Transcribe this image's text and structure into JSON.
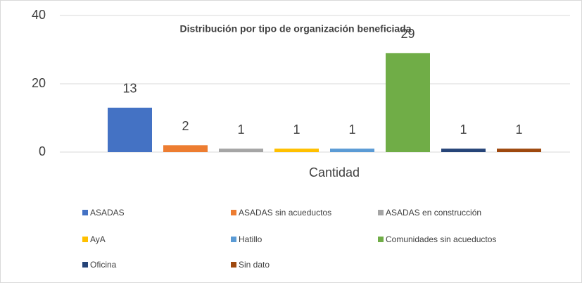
{
  "chart_data": {
    "type": "bar",
    "title": "Distribución por tipo de organización beneficiada",
    "categories": [
      "Cantidad"
    ],
    "series": [
      {
        "name": "ASADAS",
        "color": "#4472c4",
        "values": [
          13
        ]
      },
      {
        "name": "ASADAS sin acueductos",
        "color": "#ed7d31",
        "values": [
          2
        ]
      },
      {
        "name": "ASADAS en construcción",
        "color": "#a5a5a5",
        "values": [
          1
        ]
      },
      {
        "name": "AyA",
        "color": "#ffc000",
        "values": [
          1
        ]
      },
      {
        "name": "Hatillo",
        "color": "#5b9bd5",
        "values": [
          1
        ]
      },
      {
        "name": "Comunidades sin acueductos",
        "color": "#70ad47",
        "values": [
          29
        ]
      },
      {
        "name": "Oficina",
        "color": "#264478",
        "values": [
          1
        ]
      },
      {
        "name": "Sin dato",
        "color": "#9e480e",
        "values": [
          1
        ]
      }
    ],
    "ylim": [
      0,
      40
    ],
    "yticks": [
      0,
      20,
      40
    ],
    "grid": true,
    "legend": "bottom"
  }
}
